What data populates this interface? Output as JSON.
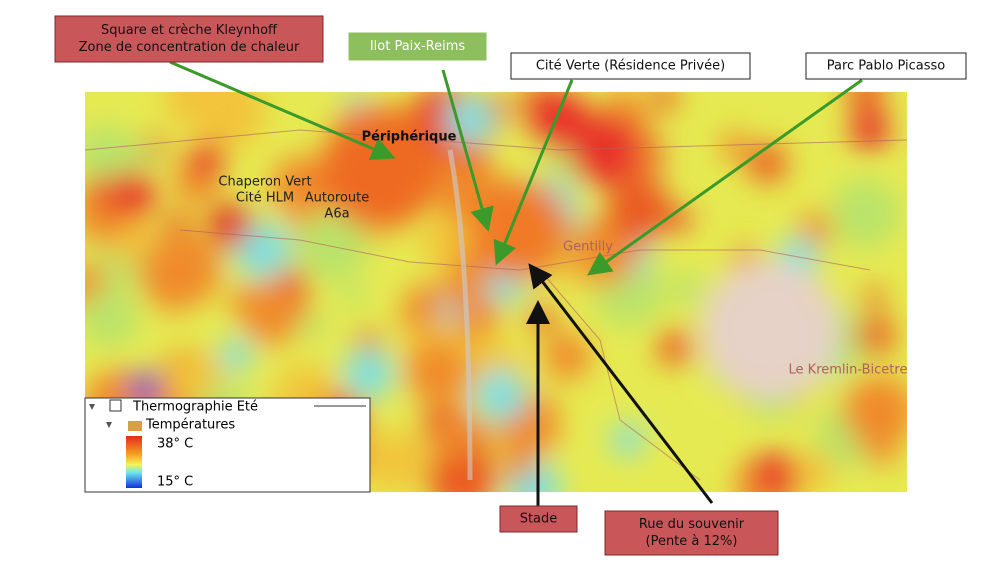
{
  "callouts": [
    {
      "lines": [
        "Square et crèche Kleynhoff",
        "Zone de concentration de chaleur"
      ]
    },
    {
      "lines": [
        "Ilot Paix-Reims"
      ]
    },
    {
      "lines": [
        "Cité Verte  (Résidence Privée)"
      ]
    },
    {
      "lines": [
        "Parc Pablo Picasso"
      ]
    },
    {
      "lines": [
        "Stade"
      ]
    },
    {
      "lines": [
        "Rue du souvenir",
        "(Pente à 12%)"
      ]
    }
  ],
  "map_labels": [
    {
      "lines": [
        "Périphérique"
      ]
    },
    {
      "lines": [
        "Chaperon Vert",
        "Cité HLM"
      ]
    },
    {
      "lines": [
        "Autoroute",
        "A6a"
      ]
    },
    {
      "lines": [
        "Gentilly"
      ]
    },
    {
      "lines": [
        "Le Kremlin-Bicetre"
      ]
    }
  ],
  "legend": {
    "layer": "Thermographie Eté",
    "group": "Températures",
    "high": "38° C",
    "low": "15° C"
  }
}
